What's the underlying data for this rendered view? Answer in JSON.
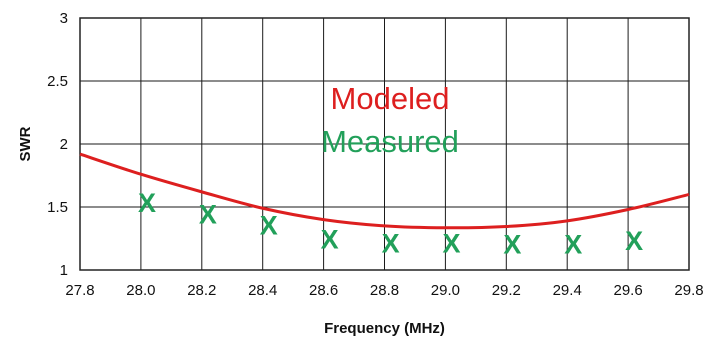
{
  "chart_data": {
    "type": "line",
    "title": "",
    "xlabel": "Frequency (MHz)",
    "ylabel": "SWR",
    "xlim": [
      27.8,
      29.8
    ],
    "ylim": [
      1,
      3
    ],
    "x_ticks": [
      "27.8",
      "28.0",
      "28.2",
      "28.4",
      "28.6",
      "28.8",
      "29.0",
      "29.2",
      "29.4",
      "29.6",
      "29.8"
    ],
    "y_ticks": [
      "1",
      "1.5",
      "2",
      "2.5",
      "3"
    ],
    "grid": true,
    "legend_position": "center",
    "series": [
      {
        "name": "Modeled",
        "kind": "line",
        "color": "#dd1f1f",
        "points": [
          {
            "x": 27.8,
            "y": 1.92
          },
          {
            "x": 28.0,
            "y": 1.76
          },
          {
            "x": 28.2,
            "y": 1.62
          },
          {
            "x": 28.4,
            "y": 1.49
          },
          {
            "x": 28.6,
            "y": 1.4
          },
          {
            "x": 28.8,
            "y": 1.35
          },
          {
            "x": 29.0,
            "y": 1.335
          },
          {
            "x": 29.2,
            "y": 1.345
          },
          {
            "x": 29.4,
            "y": 1.39
          },
          {
            "x": 29.6,
            "y": 1.48
          },
          {
            "x": 29.8,
            "y": 1.6
          }
        ]
      },
      {
        "name": "Measured",
        "kind": "marker",
        "marker": "X",
        "color": "#22a05a",
        "points": [
          {
            "x": 28.02,
            "y": 1.54
          },
          {
            "x": 28.22,
            "y": 1.45
          },
          {
            "x": 28.42,
            "y": 1.36
          },
          {
            "x": 28.62,
            "y": 1.25
          },
          {
            "x": 28.82,
            "y": 1.22
          },
          {
            "x": 29.02,
            "y": 1.22
          },
          {
            "x": 29.22,
            "y": 1.21
          },
          {
            "x": 29.42,
            "y": 1.21
          },
          {
            "x": 29.62,
            "y": 1.24
          }
        ]
      }
    ]
  }
}
